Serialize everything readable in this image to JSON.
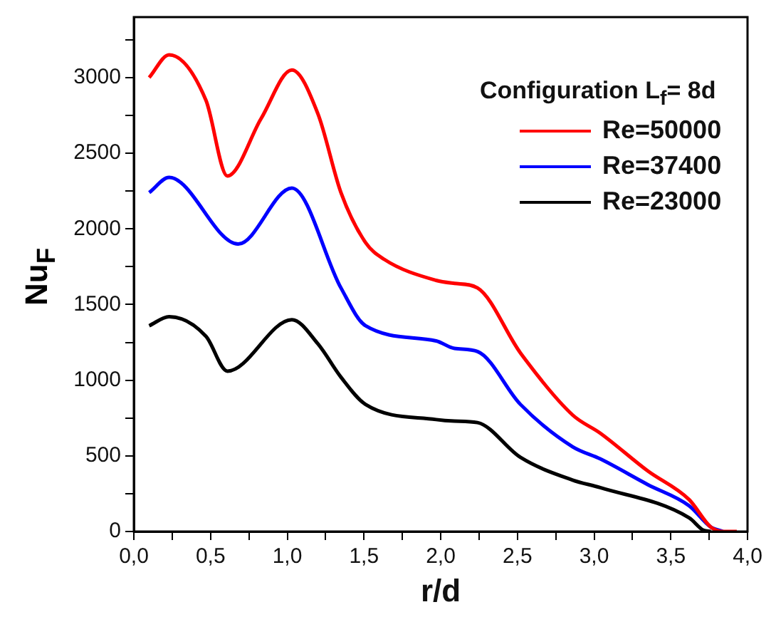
{
  "chart_data": {
    "type": "line",
    "xlabel": "r/d",
    "ylabel": "Nu$_{F}$",
    "legend_title": "Configuration L$_{f}$= 8d",
    "legend": "top right",
    "grid": false,
    "marker": "none",
    "line_style": "solid",
    "xlim": [
      0,
      4
    ],
    "ylim": [
      0,
      3400
    ],
    "xticks": [
      {
        "value": 0,
        "label": "0,0"
      },
      {
        "value": 0.25,
        "label": null
      },
      {
        "value": 0.5,
        "label": "0,5"
      },
      {
        "value": 0.75,
        "label": null
      },
      {
        "value": 1,
        "label": "1,0"
      },
      {
        "value": 1.25,
        "label": null
      },
      {
        "value": 1.5,
        "label": "1,5"
      },
      {
        "value": 1.75,
        "label": null
      },
      {
        "value": 2,
        "label": "2,0"
      },
      {
        "value": 2.25,
        "label": null
      },
      {
        "value": 2.5,
        "label": "2,5"
      },
      {
        "value": 2.75,
        "label": null
      },
      {
        "value": 3,
        "label": "3,0"
      },
      {
        "value": 3.25,
        "label": null
      },
      {
        "value": 3.5,
        "label": "3,5"
      },
      {
        "value": 3.75,
        "label": null
      },
      {
        "value": 4,
        "label": "4,0"
      }
    ],
    "yticks": [
      0,
      {
        "value": 250,
        "label": null
      },
      500,
      {
        "value": 750,
        "label": null
      },
      1000,
      {
        "value": 1250,
        "label": null
      },
      1500,
      {
        "value": 1750,
        "label": null
      },
      2000,
      {
        "value": 2250,
        "label": null
      },
      2500,
      {
        "value": 2750,
        "label": null
      },
      3000,
      {
        "value": 3250,
        "label": null
      }
    ],
    "series": [
      {
        "name": "Re=50000",
        "color": "#ff0000",
        "x": [
          0.1,
          0.23,
          0.47,
          0.61,
          0.83,
          1.03,
          1.2,
          1.35,
          1.51,
          1.63,
          1.97,
          2.09,
          2.24,
          2.52,
          2.86,
          3.04,
          3.35,
          3.62,
          3.76,
          3.84,
          3.93
        ],
        "values": [
          3000,
          3150,
          2850,
          2350,
          2730,
          3050,
          2760,
          2240,
          1910,
          1800,
          1660,
          1640,
          1610,
          1180,
          770,
          650,
          400,
          210,
          30,
          0,
          0
        ]
      },
      {
        "name": "Re=37400",
        "color": "#0000ff",
        "x": [
          0.1,
          0.23,
          0.68,
          1.03,
          1.35,
          1.51,
          1.97,
          2.09,
          2.24,
          2.52,
          2.86,
          3.04,
          3.35,
          3.62,
          3.76,
          3.84
        ],
        "values": [
          2240,
          2340,
          1900,
          2270,
          1610,
          1360,
          1260,
          1210,
          1190,
          840,
          560,
          480,
          310,
          170,
          30,
          0
        ]
      },
      {
        "name": "Re=23000",
        "color": "#000000",
        "x": [
          0.1,
          0.23,
          0.47,
          0.61,
          1.03,
          1.2,
          1.35,
          1.51,
          1.97,
          2.09,
          2.24,
          2.52,
          2.86,
          3.04,
          3.62,
          3.71,
          3.76
        ],
        "values": [
          1360,
          1420,
          1290,
          1060,
          1400,
          1240,
          1020,
          840,
          740,
          730,
          720,
          490,
          340,
          290,
          90,
          10,
          0
        ]
      }
    ]
  }
}
